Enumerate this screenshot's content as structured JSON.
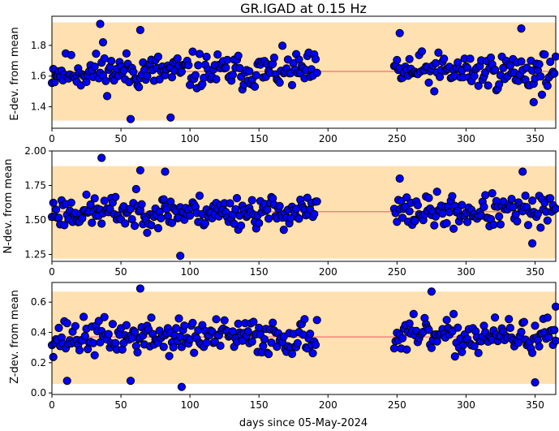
{
  "title": "GR.IGAD at 0.15 Hz",
  "xlabel": "days since 05-May-2024",
  "colors": {
    "band": "#ffe0b0",
    "mean_line": "#f4837d",
    "marker_fill": "#0000ff",
    "marker_edge": "#000000"
  },
  "chart_data": [
    {
      "type": "scatter",
      "ylabel": "E-dev. from mean",
      "xlim": [
        0,
        365
      ],
      "ylim": [
        1.26,
        1.99
      ],
      "xticks": [
        0,
        50,
        100,
        150,
        200,
        250,
        300,
        350
      ],
      "yticks": [
        1.4,
        1.6,
        1.8
      ],
      "ytick_labels": [
        "1.4",
        "1.6",
        "1.8"
      ],
      "mean": 1.63,
      "band": [
        1.31,
        1.95
      ],
      "seed": 11,
      "spread": 0.11,
      "outliers": [
        [
          35,
          1.94
        ],
        [
          37,
          1.82
        ],
        [
          57,
          1.32
        ],
        [
          64,
          1.9
        ],
        [
          86,
          1.33
        ],
        [
          252,
          1.88
        ],
        [
          340,
          1.91
        ],
        [
          349,
          1.43
        ]
      ]
    },
    {
      "type": "scatter",
      "ylabel": "N-dev. from mean",
      "xlim": [
        0,
        365
      ],
      "ylim": [
        1.2,
        2.0
      ],
      "xticks": [
        0,
        50,
        100,
        150,
        200,
        250,
        300,
        350
      ],
      "yticks": [
        1.25,
        1.5,
        1.75,
        2.0
      ],
      "ytick_labels": [
        "1.25",
        "1.50",
        "1.75",
        "2.00"
      ],
      "mean": 1.56,
      "band": [
        1.22,
        1.89
      ],
      "seed": 23,
      "spread": 0.11,
      "outliers": [
        [
          36,
          1.95
        ],
        [
          64,
          1.86
        ],
        [
          82,
          1.85
        ],
        [
          93,
          1.24
        ],
        [
          252,
          1.8
        ],
        [
          341,
          1.85
        ],
        [
          348,
          1.33
        ]
      ]
    },
    {
      "type": "scatter",
      "ylabel": "Z-dev. from mean",
      "xlim": [
        0,
        365
      ],
      "ylim": [
        -0.01,
        0.73
      ],
      "xticks": [
        0,
        50,
        100,
        150,
        200,
        250,
        300,
        350
      ],
      "yticks": [
        0.0,
        0.2,
        0.4,
        0.6
      ],
      "ytick_labels": [
        "0.0",
        "0.2",
        "0.4",
        "0.6"
      ],
      "mean": 0.37,
      "band": [
        0.06,
        0.67
      ],
      "seed": 37,
      "spread": 0.11,
      "outliers": [
        [
          64,
          0.69
        ],
        [
          94,
          0.04
        ],
        [
          275,
          0.67
        ],
        [
          350,
          0.07
        ],
        [
          11,
          0.08
        ],
        [
          57,
          0.08
        ],
        [
          365,
          0.57
        ]
      ]
    }
  ]
}
